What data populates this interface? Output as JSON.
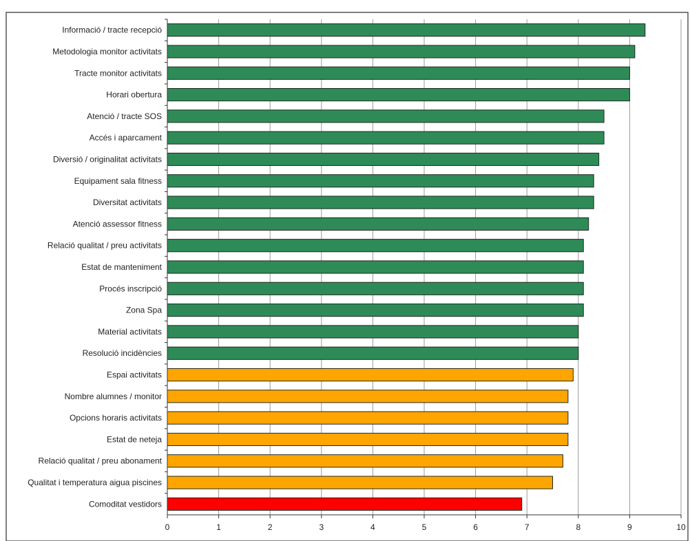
{
  "chart_data": {
    "type": "bar",
    "orientation": "horizontal",
    "categories": [
      "Informació / tracte recepció",
      "Metodologia monitor activitats",
      "Tracte monitor activitats",
      "Horari obertura",
      "Atenció / tracte SOS",
      "Accés i aparcament",
      "Diversió / originalitat activitats",
      "Equipament sala fitness",
      "Diversitat activitats",
      "Atenció assessor fitness",
      "Relació qualitat / preu activitats",
      "Estat de manteniment",
      "Procés inscripció",
      "Zona Spa",
      "Material activitats",
      "Resolució incidències",
      "Espai activitats",
      "Nombre alumnes / monitor",
      "Opcions horaris activitats",
      "Estat de neteja",
      "Relació qualitat / preu abonament",
      "Qualitat i temperatura aigua piscines",
      "Comoditat vestidors"
    ],
    "values": [
      9.3,
      9.1,
      9.0,
      9.0,
      8.5,
      8.5,
      8.4,
      8.3,
      8.3,
      8.2,
      8.1,
      8.1,
      8.1,
      8.1,
      8.0,
      8.0,
      7.9,
      7.8,
      7.8,
      7.8,
      7.7,
      7.5,
      6.9
    ],
    "bar_colors": [
      "#2e8b57",
      "#2e8b57",
      "#2e8b57",
      "#2e8b57",
      "#2e8b57",
      "#2e8b57",
      "#2e8b57",
      "#2e8b57",
      "#2e8b57",
      "#2e8b57",
      "#2e8b57",
      "#2e8b57",
      "#2e8b57",
      "#2e8b57",
      "#2e8b57",
      "#2e8b57",
      "#ffa500",
      "#ffa500",
      "#ffa500",
      "#ffa500",
      "#ffa500",
      "#ffa500",
      "#ff0000"
    ],
    "xlim": [
      0,
      10
    ],
    "xticks": [
      0,
      1,
      2,
      3,
      4,
      5,
      6,
      7,
      8,
      9,
      10
    ],
    "grid": true,
    "title": "",
    "xlabel": "",
    "ylabel": ""
  }
}
